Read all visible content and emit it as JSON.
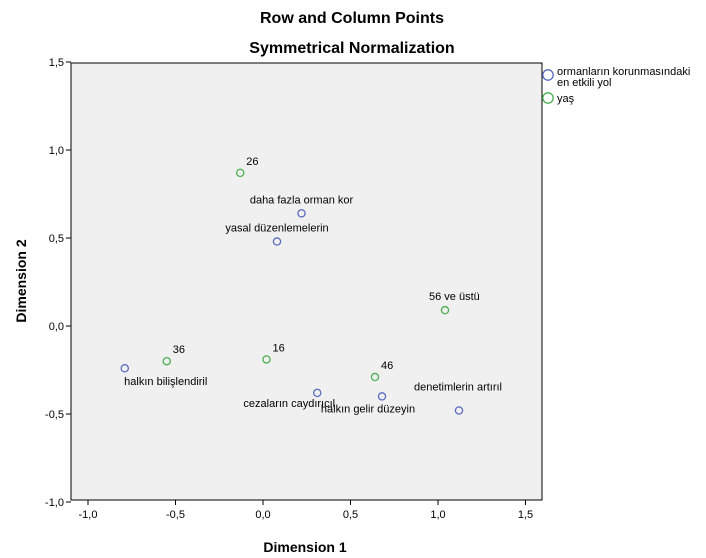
{
  "chart_data": {
    "type": "scatter",
    "title": "Row and Column Points",
    "subtitle": "Symmetrical Normalization",
    "xlabel": "Dimension 1",
    "ylabel": "Dimension 2",
    "xlim": [
      -1.1,
      1.6
    ],
    "ylim": [
      -1.0,
      1.5
    ],
    "xticks": [
      "-1,0",
      "-0,5",
      "0,0",
      "0,5",
      "1,0",
      "1,5"
    ],
    "xtick_values": [
      -1.0,
      -0.5,
      0.0,
      0.5,
      1.0,
      1.5
    ],
    "yticks": [
      "-1,0",
      "-0,5",
      "0,0",
      "0,5",
      "1,0",
      "1,5"
    ],
    "ytick_values": [
      -1.0,
      -0.5,
      0.0,
      0.5,
      1.0,
      1.5
    ],
    "grid": false,
    "legend_position": "right",
    "series": [
      {
        "name": "ormanların korunmasındaki en etkili yol",
        "color": "#5a6bbf",
        "points": [
          {
            "label": "daha fazla orman kor",
            "x": 0.22,
            "y": 0.64
          },
          {
            "label": "yasal düzenlemelerin",
            "x": 0.08,
            "y": 0.48
          },
          {
            "label": "halkın bilişlendiril",
            "x": -0.79,
            "y": -0.24
          },
          {
            "label": "cezaların caydırıcıl",
            "x": 0.31,
            "y": -0.38
          },
          {
            "label": "halkın gelir düzeyin",
            "x": 0.68,
            "y": -0.4
          },
          {
            "label": "denetimlerin artırıl",
            "x": 1.12,
            "y": -0.48
          }
        ]
      },
      {
        "name": "yaş",
        "color": "#4caf50",
        "points": [
          {
            "label": "26",
            "x": -0.13,
            "y": 0.87
          },
          {
            "label": "56 ve üstü",
            "x": 1.04,
            "y": 0.09
          },
          {
            "label": "36",
            "x": -0.55,
            "y": -0.2
          },
          {
            "label": "16",
            "x": 0.02,
            "y": -0.19
          },
          {
            "label": "46",
            "x": 0.64,
            "y": -0.29
          }
        ]
      }
    ]
  }
}
